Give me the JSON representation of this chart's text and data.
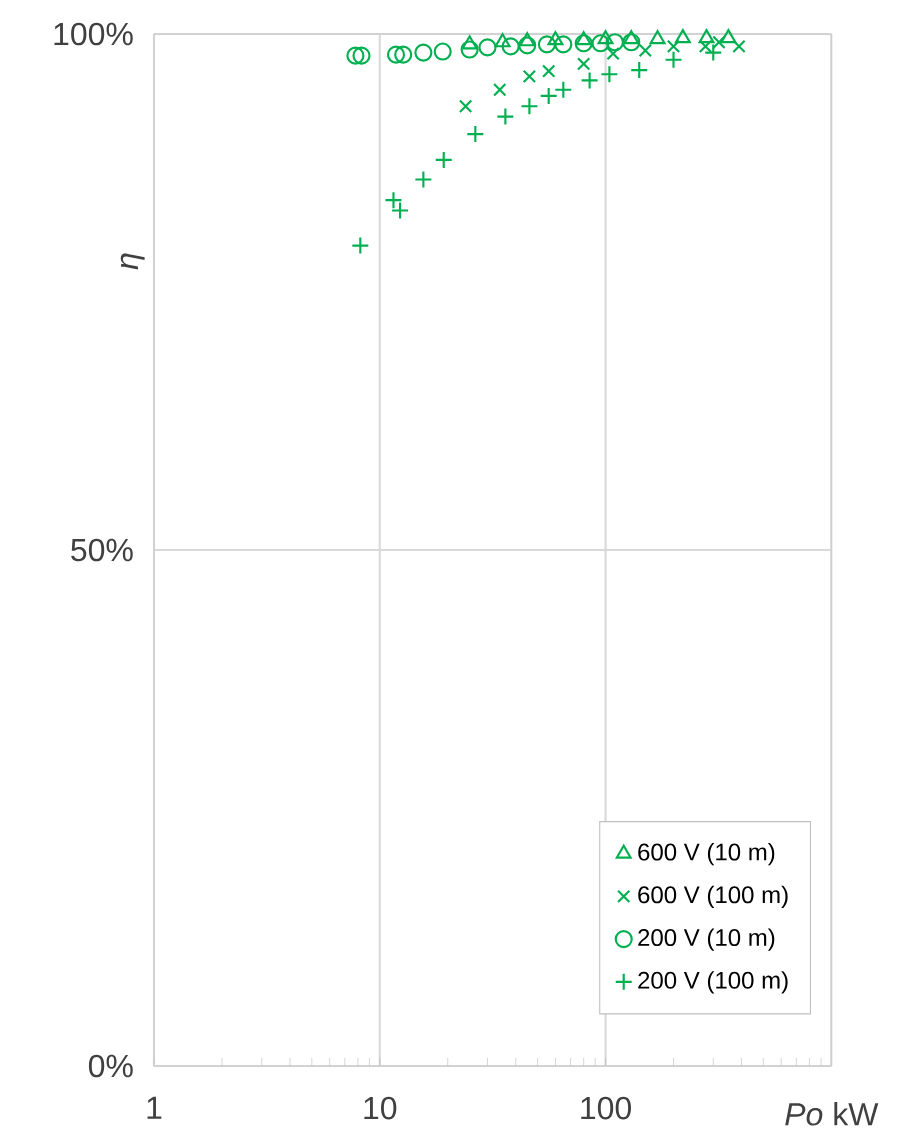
{
  "chart_data": {
    "type": "scatter",
    "xlabel": "*Po*  kW",
    "ylabel": "η",
    "log": "x",
    "xlim": [
      1,
      1000
    ],
    "xticks": [
      1,
      10,
      100,
      {
        "value": 1000,
        "label": null
      }
    ],
    "ylim": [
      0,
      100
    ],
    "yticks": [
      {
        "value": 0,
        "label": "0%"
      },
      {
        "value": 50,
        "label": "50%"
      },
      {
        "value": 100,
        "label": "100%"
      }
    ],
    "grid": true,
    "legend": "bottom right",
    "series": [
      {
        "name": "600 V (10 m)",
        "color": "#00b050",
        "marker": "triangle",
        "x": [
          25,
          35,
          45,
          60,
          80,
          100,
          130,
          170,
          220,
          280,
          350
        ],
        "values": [
          99.0,
          99.2,
          99.3,
          99.4,
          99.4,
          99.5,
          99.5,
          99.5,
          99.6,
          99.6,
          99.6
        ]
      },
      {
        "name": "600 V (100 m)",
        "color": "#00b050",
        "marker": "cross",
        "x": [
          24,
          34,
          46,
          56,
          80,
          108,
          150,
          200,
          277,
          318,
          390
        ],
        "values": [
          93.0,
          94.6,
          95.9,
          96.4,
          97.1,
          98.1,
          98.4,
          98.8,
          98.8,
          99.2,
          98.8
        ]
      },
      {
        "name": "200 V (10 m)",
        "color": "#00b050",
        "marker": "circle",
        "x": [
          7.8,
          8.3,
          11.8,
          12.7,
          15.6,
          19,
          25,
          30,
          38,
          45,
          55,
          65,
          80,
          95,
          110,
          130
        ],
        "values": [
          97.9,
          97.9,
          98.0,
          98.0,
          98.2,
          98.3,
          98.5,
          98.7,
          98.8,
          98.9,
          99.0,
          99.0,
          99.1,
          99.1,
          99.2,
          99.2
        ]
      },
      {
        "name": "200 V (100 m)",
        "color": "#00b050",
        "marker": "plus",
        "x": [
          8.2,
          11.5,
          12.3,
          15.6,
          19.2,
          26.5,
          36,
          46,
          56,
          65,
          85,
          104,
          141,
          200,
          300
        ],
        "values": [
          79.5,
          83.9,
          82.9,
          85.9,
          87.8,
          90.3,
          92.0,
          93.0,
          94.0,
          94.6,
          95.5,
          96.1,
          96.5,
          97.5,
          98.2
        ]
      }
    ]
  }
}
